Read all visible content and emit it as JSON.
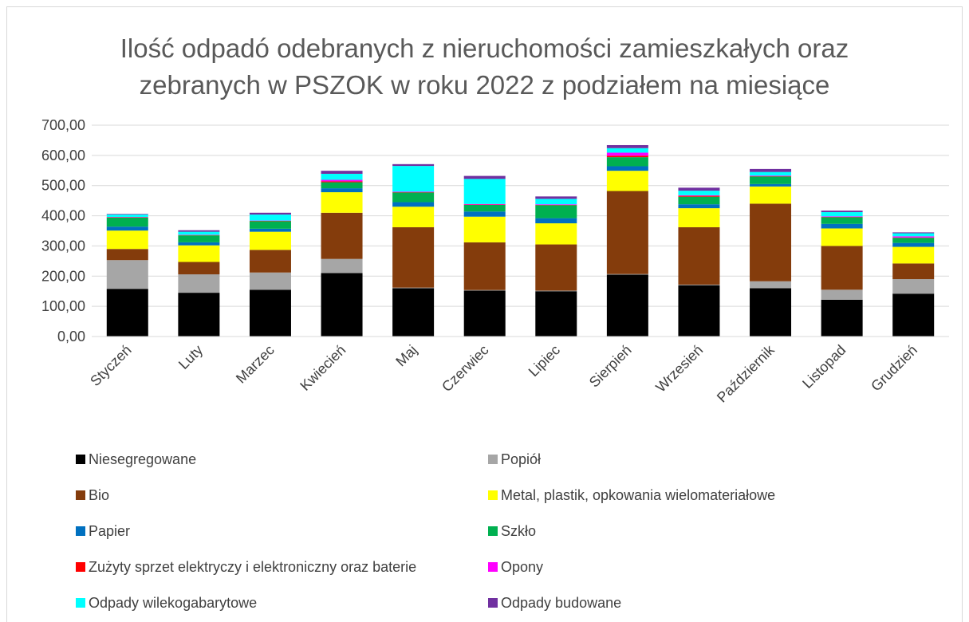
{
  "chart_data": {
    "type": "stacked_bar",
    "title": "Ilość odpadó odebranych z nieruchomości zamieszkałych oraz zebranych w PSZOK w roku 2022 z podziałem na miesiące",
    "categories": [
      "Styczeń",
      "Luty",
      "Marzec",
      "Kwiecień",
      "Maj",
      "Czerwiec",
      "Lipiec",
      "Sierpień",
      "Wrzesień",
      "Październik",
      "Listopad",
      "Grudzień"
    ],
    "series": [
      {
        "name": "Niesegregowane",
        "color": "#000000",
        "values": [
          158,
          145,
          155,
          210,
          160,
          152,
          150,
          205,
          170,
          160,
          122,
          142
        ]
      },
      {
        "name": "Popiół",
        "color": "#a6a6a6",
        "values": [
          95,
          61,
          57,
          47,
          2,
          2,
          2,
          2,
          2,
          23,
          33,
          48
        ]
      },
      {
        "name": "Bio",
        "color": "#843c0c",
        "values": [
          37,
          41,
          75,
          153,
          200,
          158,
          153,
          275,
          190,
          257,
          145,
          52
        ]
      },
      {
        "name": "Metal, plastik, opkowania wielomateriałowe",
        "color": "#ffff00",
        "values": [
          61,
          55,
          60,
          68,
          68,
          85,
          70,
          67,
          63,
          57,
          58,
          55
        ]
      },
      {
        "name": "Papier",
        "color": "#0070c0",
        "values": [
          13,
          10,
          10,
          13,
          15,
          17,
          17,
          15,
          13,
          8,
          15,
          13
        ]
      },
      {
        "name": "Szkło",
        "color": "#00b050",
        "values": [
          30,
          23,
          25,
          20,
          32,
          22,
          43,
          30,
          25,
          25,
          22,
          17
        ]
      },
      {
        "name": "Zużyty sprzet elektryczy i elektroniczny oraz baterie",
        "color": "#ff0000",
        "values": [
          1,
          1,
          1,
          3,
          1,
          1,
          1,
          5,
          3,
          1,
          1,
          1
        ]
      },
      {
        "name": "Opony",
        "color": "#ff00ff",
        "values": [
          1,
          1,
          1,
          5,
          2,
          2,
          2,
          10,
          2,
          2,
          2,
          4
        ]
      },
      {
        "name": "Odpady wilekogabarytowe",
        "color": "#00ffff",
        "values": [
          8,
          10,
          20,
          20,
          85,
          83,
          18,
          15,
          15,
          12,
          14,
          10
        ]
      },
      {
        "name": "Odpady budowane",
        "color": "#7030a0",
        "values": [
          2,
          5,
          6,
          10,
          6,
          10,
          8,
          10,
          10,
          10,
          5,
          3
        ]
      }
    ],
    "ylim": [
      0,
      700
    ],
    "yticks": [
      {
        "value": 0,
        "label": "0,00"
      },
      {
        "value": 100,
        "label": "100,00"
      },
      {
        "value": 200,
        "label": "200,00"
      },
      {
        "value": 300,
        "label": "300,00"
      },
      {
        "value": 400,
        "label": "400,00"
      },
      {
        "value": 500,
        "label": "500,00"
      },
      {
        "value": 600,
        "label": "600,00"
      },
      {
        "value": 700,
        "label": "700,00"
      }
    ],
    "grid": true,
    "legend": "bottom"
  }
}
